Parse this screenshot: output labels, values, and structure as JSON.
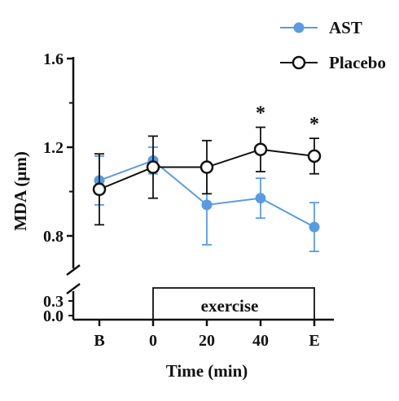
{
  "chart_data": {
    "type": "line",
    "title": "",
    "xlabel": "Time (min)",
    "ylabel": "MDA  (μm)",
    "categories": [
      "B",
      "0",
      "20",
      "40",
      "E"
    ],
    "y_upper_ticks": [
      "0.8",
      "1.2",
      "1.6"
    ],
    "y_lower_ticks": [
      "0.0",
      "0.3"
    ],
    "ylim_upper": [
      0.7,
      1.6
    ],
    "axis_break": true,
    "legend_position": "top-right",
    "series": [
      {
        "name": "AST",
        "color": "#5a9be0",
        "marker": "filled-circle",
        "values": [
          1.05,
          1.14,
          0.94,
          0.97,
          0.84
        ],
        "error": [
          0.11,
          0.06,
          0.18,
          0.09,
          0.11
        ]
      },
      {
        "name": "Placebo",
        "color": "#111111",
        "marker": "open-circle",
        "values": [
          1.01,
          1.11,
          1.11,
          1.19,
          1.16
        ],
        "error": [
          0.16,
          0.14,
          0.12,
          0.1,
          0.08
        ]
      }
    ],
    "annotations": [
      {
        "category": "40",
        "text": "*"
      },
      {
        "category": "E",
        "text": "*"
      }
    ],
    "exercise_label": "exercise",
    "exercise_span": [
      "0",
      "E"
    ]
  }
}
